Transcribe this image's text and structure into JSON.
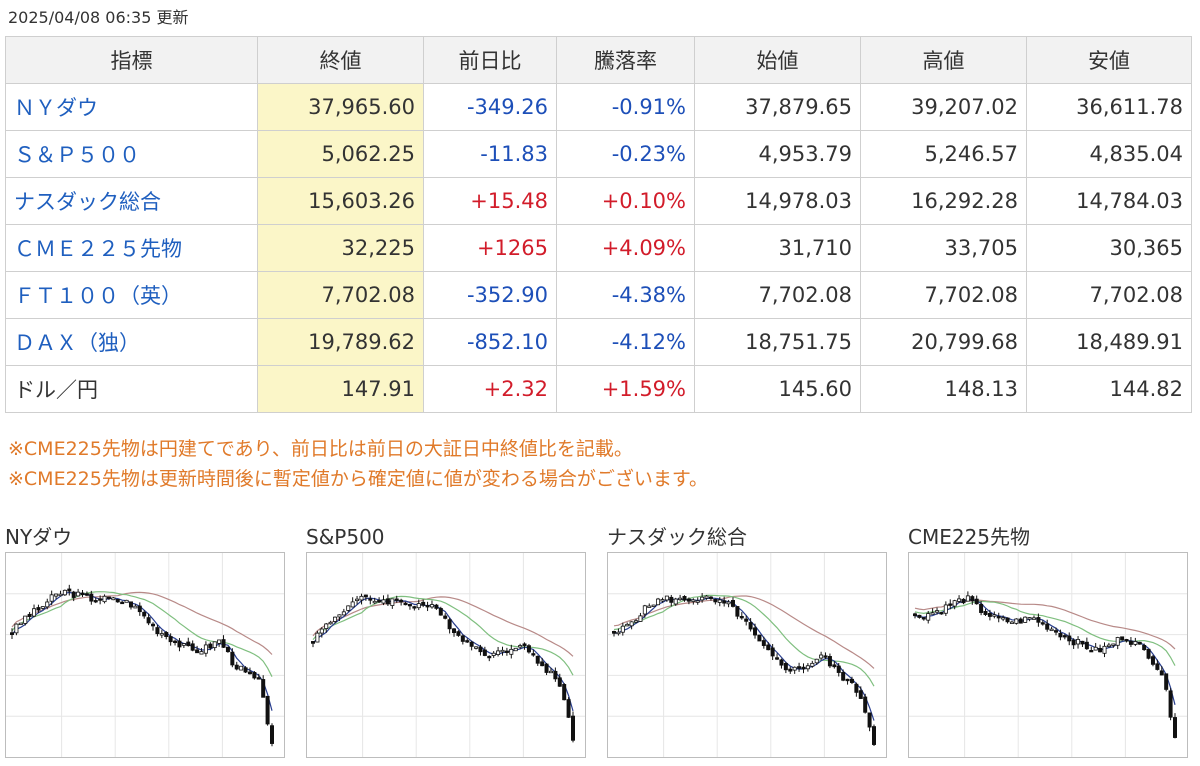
{
  "updated": "2025/04/08 06:35 更新",
  "columns": [
    "指標",
    "終値",
    "前日比",
    "騰落率",
    "始値",
    "高値",
    "安値"
  ],
  "rows": [
    {
      "name": "ＮＹダウ",
      "close": "37,965.60",
      "change": "-349.26",
      "rate": "-0.91%",
      "open": "37,879.65",
      "high": "39,207.02",
      "low": "36,611.78"
    },
    {
      "name": "Ｓ＆Ｐ５００",
      "close": "5,062.25",
      "change": "-11.83",
      "rate": "-0.23%",
      "open": "4,953.79",
      "high": "5,246.57",
      "low": "4,835.04"
    },
    {
      "name": "ナスダック総合",
      "close": "15,603.26",
      "change": "+15.48",
      "rate": "+0.10%",
      "open": "14,978.03",
      "high": "16,292.28",
      "low": "14,784.03"
    },
    {
      "name": "ＣＭＥ２２５先物",
      "close": "32,225",
      "change": "+1265",
      "rate": "+4.09%",
      "open": "31,710",
      "high": "33,705",
      "low": "30,365"
    },
    {
      "name": "ＦＴ１００（英）",
      "close": "7,702.08",
      "change": "-352.90",
      "rate": "-4.38%",
      "open": "7,702.08",
      "high": "7,702.08",
      "low": "7,702.08"
    },
    {
      "name": "ＤＡＸ（独）",
      "close": "19,789.62",
      "change": "-852.10",
      "rate": "-4.12%",
      "open": "18,751.75",
      "high": "20,799.68",
      "low": "18,489.91"
    },
    {
      "name": "ドル／円",
      "close": "147.91",
      "change": "+2.32",
      "rate": "+1.59%",
      "open": "145.60",
      "high": "148.13",
      "low": "144.82"
    }
  ],
  "notes": [
    "※CME225先物は円建てであり、前日比は前日の大証日中終値比を記載。",
    "※CME225先物は更新時間後に暫定値から確定値に値が変わる場合がございます。"
  ],
  "charts": [
    {
      "title": "NYダウ",
      "shape": [
        0.62,
        0.7,
        0.74,
        0.8,
        0.84,
        0.82,
        0.8,
        0.8,
        0.79,
        0.78,
        0.72,
        0.64,
        0.6,
        0.55,
        0.52,
        0.54,
        0.58,
        0.46,
        0.4,
        0.36,
        0.04
      ]
    },
    {
      "title": "S&P500",
      "shape": [
        0.58,
        0.66,
        0.72,
        0.78,
        0.8,
        0.79,
        0.79,
        0.78,
        0.77,
        0.76,
        0.7,
        0.62,
        0.56,
        0.52,
        0.5,
        0.53,
        0.57,
        0.48,
        0.42,
        0.35,
        0.06
      ]
    },
    {
      "title": "ナスダック総合",
      "shape": [
        0.6,
        0.66,
        0.72,
        0.78,
        0.8,
        0.79,
        0.8,
        0.8,
        0.78,
        0.76,
        0.68,
        0.58,
        0.5,
        0.44,
        0.42,
        0.45,
        0.5,
        0.42,
        0.36,
        0.28,
        0.04
      ]
    },
    {
      "title": "CME225先物",
      "shape": [
        0.7,
        0.72,
        0.74,
        0.78,
        0.8,
        0.74,
        0.7,
        0.68,
        0.68,
        0.7,
        0.66,
        0.62,
        0.58,
        0.55,
        0.52,
        0.55,
        0.6,
        0.56,
        0.5,
        0.4,
        0.08
      ]
    }
  ],
  "colors": {
    "positive": "#d21c2a",
    "negative": "#1d4fb8",
    "link": "#1f5fbf",
    "note": "#e07a2a",
    "close_bg": "#fbf6c8",
    "ma_short": "#2a3f8f",
    "ma_mid": "#7fbf7f",
    "ma_long": "#b88a88"
  }
}
